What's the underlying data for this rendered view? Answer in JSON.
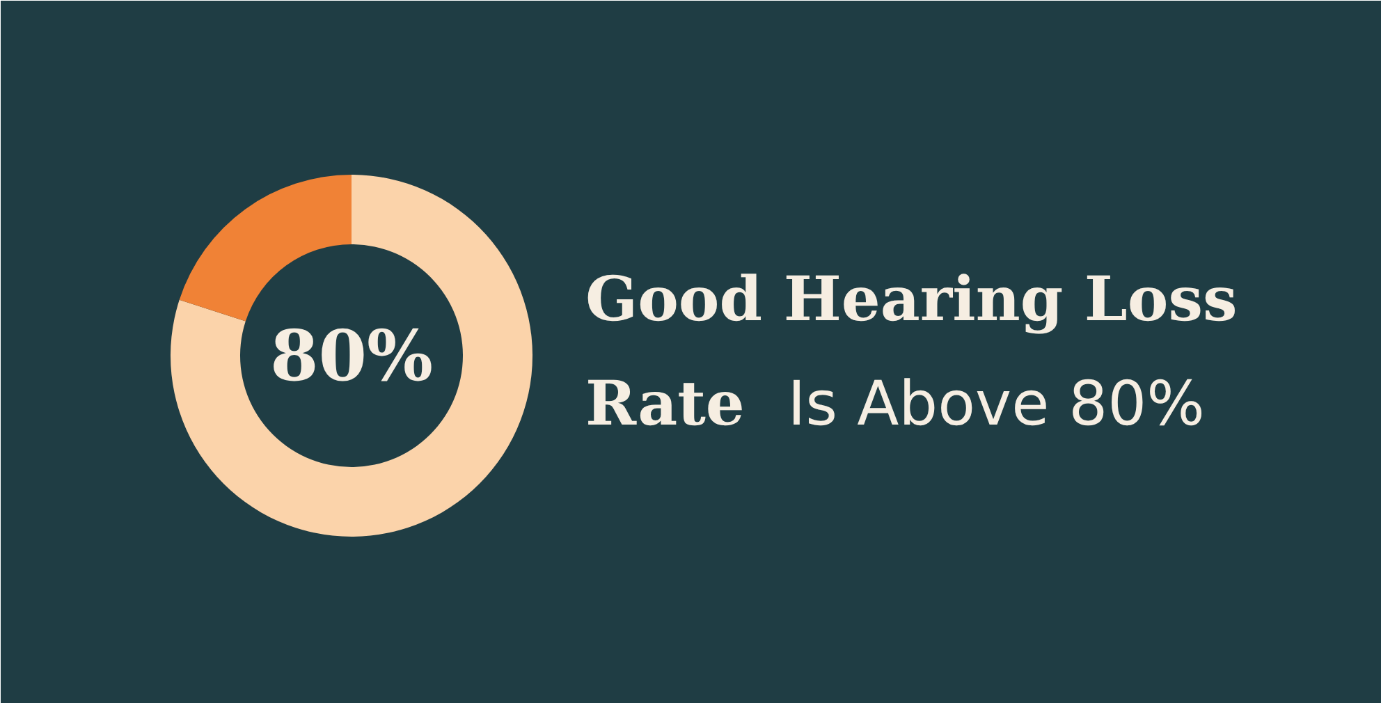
{
  "chart_data": {
    "type": "donut",
    "title": "Good Hearing Loss Rate",
    "subtitle": "Is Above 80%",
    "categories": [
      null,
      null
    ],
    "values": [
      80,
      20
    ],
    "colors": [
      "#fbd3aa",
      "#f08236"
    ],
    "value_labels": [
      "80%",
      null
    ]
  }
}
